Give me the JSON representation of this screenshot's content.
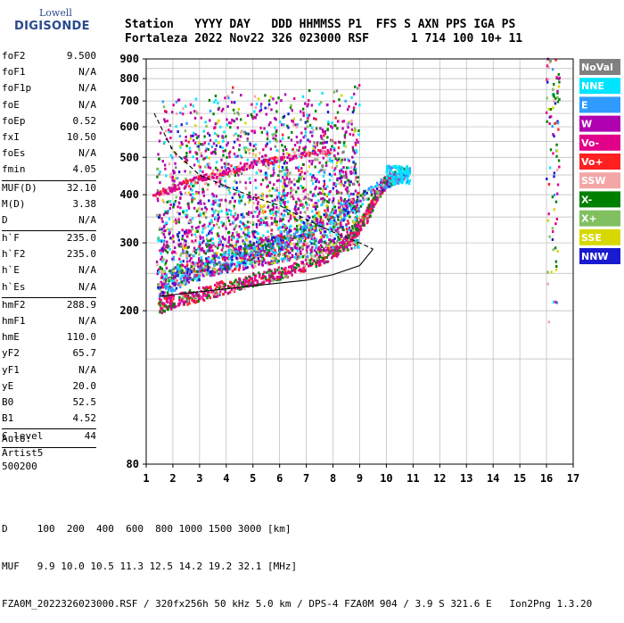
{
  "logo": {
    "line1": "Lowell",
    "line2": "DIGISONDE"
  },
  "header": {
    "row1": "Station   YYYY DAY   DDD HHMMSS P1  FFS S AXN PPS IGA PS",
    "row2": "Fortaleza 2022 Nov22 326 023000 RSF      1 714 100 10+ 11"
  },
  "params_groups": [
    [
      {
        "k": "foF2",
        "v": "9.500"
      },
      {
        "k": "foF1",
        "v": "N/A"
      },
      {
        "k": "foF1p",
        "v": "N/A"
      },
      {
        "k": "foE",
        "v": "N/A"
      },
      {
        "k": "foEp",
        "v": "0.52"
      },
      {
        "k": "fxI",
        "v": "10.50"
      },
      {
        "k": "foEs",
        "v": "N/A"
      },
      {
        "k": "fmin",
        "v": "4.05"
      }
    ],
    [
      {
        "k": "MUF(D)",
        "v": "32.10"
      },
      {
        "k": "M(D)",
        "v": "3.38"
      },
      {
        "k": "D",
        "v": "N/A"
      }
    ],
    [
      {
        "k": "h`F",
        "v": "235.0"
      },
      {
        "k": "h`F2",
        "v": "235.0"
      },
      {
        "k": "h`E",
        "v": "N/A"
      },
      {
        "k": "h`Es",
        "v": "N/A"
      }
    ],
    [
      {
        "k": "hmF2",
        "v": "288.9"
      },
      {
        "k": "hmF1",
        "v": "N/A"
      },
      {
        "k": "hmE",
        "v": "110.0"
      },
      {
        "k": "yF2",
        "v": "65.7"
      },
      {
        "k": "yF1",
        "v": "N/A"
      },
      {
        "k": "yE",
        "v": "20.0"
      },
      {
        "k": "B0",
        "v": "52.5"
      },
      {
        "k": "B1",
        "v": "4.52"
      }
    ],
    [
      {
        "k": "C-level",
        "v": "44"
      }
    ]
  ],
  "auto": [
    "Auto:",
    "Artist5",
    "500200"
  ],
  "footer": {
    "d_row": "D     100  200  400  600  800 1000 1500 3000 [km]",
    "muf_row": "MUF   9.9 10.0 10.5 11.3 12.5 14.2 19.2 32.1 [MHz]",
    "file_row": "FZA0M_2022326023000.RSF / 320fx256h 50 kHz 5.0 km / DPS-4 FZA0M 904 / 3.9 S 321.6 E   Ion2Png 1.3.20"
  },
  "chart_data": {
    "type": "scatter",
    "xlim": [
      1,
      17
    ],
    "ylim": [
      80,
      900
    ],
    "x_ticks": [
      1,
      2,
      3,
      4,
      5,
      6,
      7,
      8,
      9,
      10,
      11,
      12,
      13,
      14,
      15,
      16,
      17
    ],
    "y_ticks": [
      80,
      200,
      300,
      400,
      500,
      600,
      700,
      800,
      900
    ],
    "y_scale": "log",
    "grid": true,
    "legend_position": "right",
    "legend": [
      {
        "name": "NoVal",
        "color": "#808080"
      },
      {
        "name": "NNE",
        "color": "#00e5ff"
      },
      {
        "name": "E",
        "color": "#2f9bff"
      },
      {
        "name": "W",
        "color": "#b000b0"
      },
      {
        "name": "Vo-",
        "color": "#e0008a"
      },
      {
        "name": "Vo+",
        "color": "#ff2020"
      },
      {
        "name": "SSW",
        "color": "#f4a6a6"
      },
      {
        "name": "X-",
        "color": "#008000"
      },
      {
        "name": "X+",
        "color": "#80c060"
      },
      {
        "name": "SSE",
        "color": "#d8d800"
      },
      {
        "name": "NNW",
        "color": "#1a1ad0"
      }
    ],
    "ordinary_trace": [
      [
        1.5,
        205
      ],
      [
        2,
        212
      ],
      [
        3,
        220
      ],
      [
        4,
        230
      ],
      [
        5,
        240
      ],
      [
        6,
        250
      ],
      [
        7,
        262
      ],
      [
        8,
        280
      ],
      [
        8.7,
        310
      ],
      [
        9.2,
        345
      ],
      [
        9.6,
        390
      ],
      [
        10,
        430
      ],
      [
        10.3,
        450
      ]
    ],
    "extraordinary_trace": [
      [
        1.5,
        230
      ],
      [
        2,
        240
      ],
      [
        3,
        255
      ],
      [
        4,
        270
      ],
      [
        5,
        285
      ],
      [
        6,
        300
      ],
      [
        7,
        320
      ],
      [
        8,
        350
      ],
      [
        9,
        385
      ],
      [
        10,
        430
      ],
      [
        10.8,
        460
      ]
    ],
    "upper_trace": [
      [
        1.3,
        395
      ],
      [
        2,
        415
      ],
      [
        3,
        440
      ],
      [
        4,
        455
      ],
      [
        5,
        480
      ],
      [
        6,
        495
      ],
      [
        7,
        510
      ],
      [
        8,
        520
      ]
    ],
    "model_profile": [
      [
        1.3,
        650
      ],
      [
        2,
        520
      ],
      [
        3,
        450
      ],
      [
        4,
        420
      ],
      [
        5,
        395
      ],
      [
        6,
        375
      ],
      [
        7,
        345
      ],
      [
        8,
        320
      ],
      [
        9,
        300
      ],
      [
        9.5,
        289
      ],
      [
        9,
        262
      ],
      [
        8,
        248
      ],
      [
        7,
        240
      ],
      [
        6,
        236
      ],
      [
        5,
        232
      ],
      [
        4,
        228
      ],
      [
        3,
        224
      ],
      [
        2,
        220
      ],
      [
        1.5,
        218
      ]
    ]
  }
}
